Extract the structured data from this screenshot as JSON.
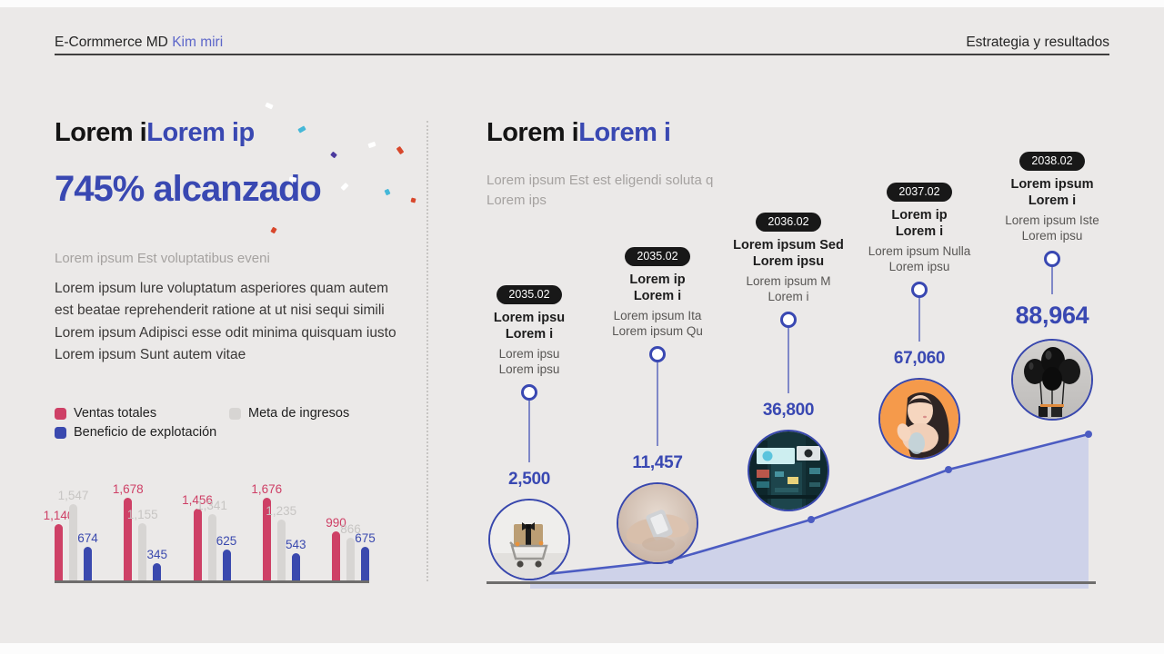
{
  "header": {
    "brand": "E-Cormmerce MD",
    "author": "Kim miri",
    "section": "Estrategia y resultados"
  },
  "left": {
    "title_black": "Lorem i",
    "title_blue": "Lorem ip",
    "headline": "745% alcanzado",
    "lead": "Lorem ipsum Est voluptatibus eveni",
    "body_lines": [
      "Lorem ipsum lure voluptatum asperiores quam autem",
      "est beatae reprehenderit ratione at ut nisi sequi simili",
      "Lorem ipsum Adipisci esse odit minima quisquam iusto",
      "Lorem ipsum Sunt autem vitae"
    ]
  },
  "right": {
    "title_black": "Lorem i",
    "title_blue": "Lorem i",
    "lead_lines": [
      "Lorem ipsum Est est eligendi soluta q",
      "Lorem ips"
    ],
    "milestones": [
      {
        "date": "2035.02",
        "title_lines": [
          "Lorem ipsu",
          "Lorem i"
        ],
        "desc_lines": [
          "Lorem ipsu",
          "Lorem ipsu"
        ],
        "value": "2,500",
        "image": "gift-cart-photo",
        "emphasis": false
      },
      {
        "date": "2035.02",
        "title_lines": [
          "Lorem ip",
          "Lorem i"
        ],
        "desc_lines": [
          "Lorem ipsum Ita",
          "Lorem ipsum Qu"
        ],
        "value": "11,457",
        "image": "hands-phone-photo",
        "emphasis": false
      },
      {
        "date": "2036.02",
        "title_lines": [
          "Lorem ipsum Sed",
          "Lorem ipsu"
        ],
        "desc_lines": [
          "Lorem ipsum M",
          "Lorem i"
        ],
        "value": "36,800",
        "image": "city-billboards-photo",
        "emphasis": false
      },
      {
        "date": "2037.02",
        "title_lines": [
          "Lorem ip",
          "Lorem i"
        ],
        "desc_lines": [
          "Lorem ipsum Nulla",
          "Lorem ipsu"
        ],
        "value": "67,060",
        "image": "woman-portrait-photo",
        "emphasis": false
      },
      {
        "date": "2038.02",
        "title_lines": [
          "Lorem ipsum",
          "Lorem i"
        ],
        "desc_lines": [
          "Lorem ipsum Iste",
          "Lorem ipsu"
        ],
        "value": "88,964",
        "image": "black-balloons-photo",
        "emphasis": true
      }
    ]
  },
  "colors": {
    "accent_blue": "#3948b2",
    "pink_bar": "#ce4066",
    "gray_bar": "#d7d5d3",
    "blue_bar": "#3a49ae",
    "pink_label": "#ce4066",
    "gray_label": "#c7c5c3",
    "blue_label": "#3a49ae",
    "badge_bg": "#181818",
    "area_fill": "#c7cce9",
    "area_line": "#4c5cc2"
  },
  "chart_data": [
    {
      "type": "bar",
      "title": "",
      "categories": [
        "",
        "",
        "",
        "",
        ""
      ],
      "series": [
        {
          "name": "Ventas totales",
          "color": "#ce4066",
          "values": [
            1140,
            1678,
            1456,
            1676,
            990
          ]
        },
        {
          "name": "Meta de ingresos",
          "color": "#d7d5d3",
          "values": [
            1547,
            1155,
            1341,
            1235,
            866
          ]
        },
        {
          "name": "Beneficio de explotación",
          "color": "#3a49ae",
          "values": [
            674,
            345,
            625,
            543,
            675
          ]
        }
      ],
      "legend_position": "top",
      "value_labels": true,
      "grid": false,
      "ylim": [
        0,
        1800
      ]
    },
    {
      "type": "area",
      "x": [
        "2035.02",
        "2035.02",
        "2036.02",
        "2037.02",
        "2038.02"
      ],
      "values": [
        2500,
        11457,
        36800,
        67060,
        88964
      ],
      "labels": [
        "2,500",
        "11,457",
        "36,800",
        "67,060",
        "88,964"
      ],
      "line_color": "#4c5cc2",
      "fill_color": "#c7cce9",
      "grid": false
    }
  ]
}
